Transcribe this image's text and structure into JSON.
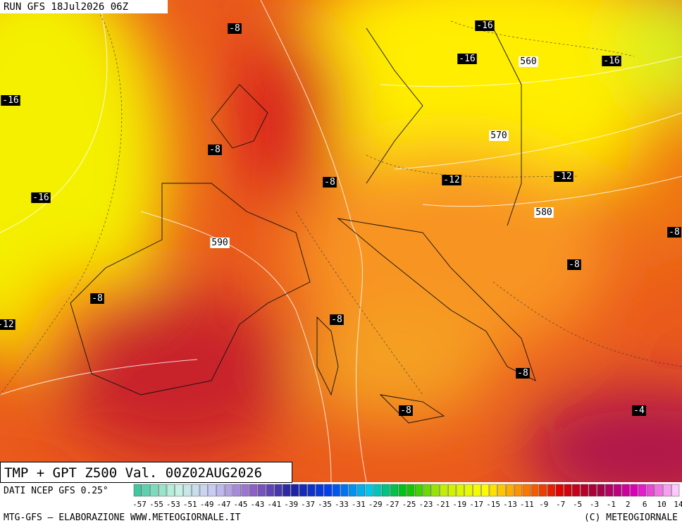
{
  "header": {
    "run": "RUN GFS 18Jul2026 06Z"
  },
  "map": {
    "title": "TMP + GPT Z500 Val. 00Z02AUG2026",
    "temperature_labels": [
      -8,
      -16,
      -16,
      -16,
      -16,
      -8,
      -12,
      -12,
      -8,
      -16,
      -8,
      -8,
      -8,
      -12,
      -8,
      -8,
      -8,
      -4
    ],
    "geopotential_labels": [
      560,
      570,
      580,
      590
    ]
  },
  "footer": {
    "source": "DATI NCEP GFS 0.25°",
    "credit": "MTG-GFS — ELABORAZIONE WWW.METEOGIORNALE.IT",
    "copyright": "(C) METEOGIORNALE",
    "scale": [
      -57,
      -55,
      -53,
      -51,
      -49,
      -47,
      -45,
      -43,
      -41,
      -39,
      -37,
      -35,
      -33,
      -31,
      -29,
      -27,
      -25,
      -23,
      -21,
      -19,
      -17,
      -15,
      -13,
      -11,
      -9,
      -7,
      -5,
      -3,
      -1,
      2,
      6,
      10,
      14
    ]
  }
}
